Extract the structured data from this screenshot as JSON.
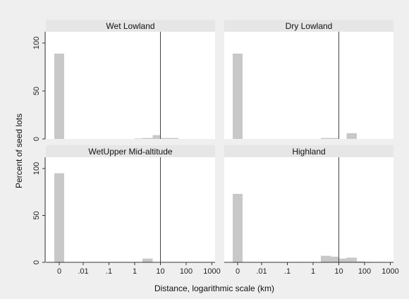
{
  "chart_data": {
    "type": "bar",
    "xlabel": "Distance, logarithmic scale (km)",
    "ylabel": "Percent of seed lots",
    "x_tick_labels": [
      "0",
      ".01",
      ".1",
      "1",
      "10",
      "100",
      "1000"
    ],
    "y_tick_labels": [
      "0",
      "50",
      "100"
    ],
    "ylim": [
      0,
      100
    ],
    "grid": false,
    "reference_line_x": 10,
    "bar_color": "#c8c8c8",
    "panel_background": "#ffffff",
    "strip_background": "#e6e6e6",
    "outer_background": "#efefef",
    "reference_line_color": "#444444",
    "panels": [
      {
        "title": "Wet Lowland",
        "bars": [
          {
            "x_from": 0,
            "x_to": 0.001,
            "y": 89
          },
          {
            "x_from": 1,
            "x_to": 2,
            "y": 0.5
          },
          {
            "x_from": 2,
            "x_to": 5,
            "y": 1
          },
          {
            "x_from": 5,
            "x_to": 10,
            "y": 4
          },
          {
            "x_from": 10,
            "x_to": 20,
            "y": 1
          },
          {
            "x_from": 20,
            "x_to": 50,
            "y": 1
          }
        ]
      },
      {
        "title": "Dry Lowland",
        "bars": [
          {
            "x_from": 0,
            "x_to": 0.001,
            "y": 89
          },
          {
            "x_from": 2,
            "x_to": 10,
            "y": 1
          },
          {
            "x_from": 20,
            "x_to": 50,
            "y": 6
          }
        ]
      },
      {
        "title": "WetUpper Mid-altitude",
        "bars": [
          {
            "x_from": 0,
            "x_to": 0.001,
            "y": 95
          },
          {
            "x_from": 2,
            "x_to": 5,
            "y": 4
          }
        ]
      },
      {
        "title": "Highland",
        "bars": [
          {
            "x_from": 0,
            "x_to": 0.001,
            "y": 73
          },
          {
            "x_from": 2,
            "x_to": 5,
            "y": 7
          },
          {
            "x_from": 5,
            "x_to": 10,
            "y": 6
          },
          {
            "x_from": 10,
            "x_to": 20,
            "y": 4
          },
          {
            "x_from": 20,
            "x_to": 50,
            "y": 5
          },
          {
            "x_from": 50,
            "x_to": 100,
            "y": 1
          },
          {
            "x_from": 100,
            "x_to": 200,
            "y": 0.5
          }
        ]
      }
    ]
  }
}
